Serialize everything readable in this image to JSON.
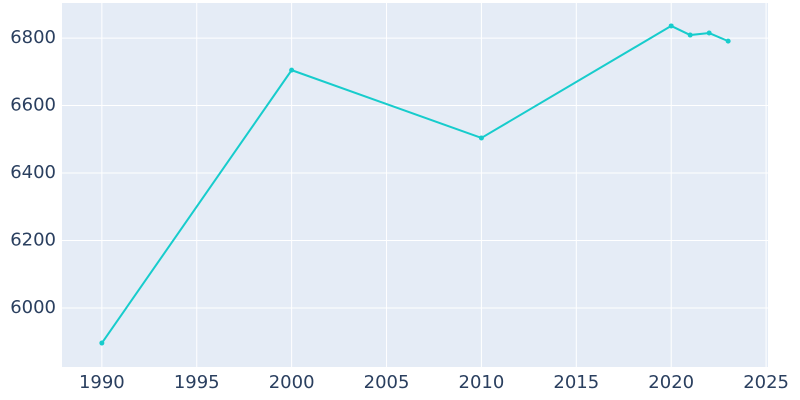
{
  "chart_data": {
    "type": "line",
    "x": [
      1990,
      2000,
      2010,
      2020,
      2021,
      2022,
      2023
    ],
    "series": [
      {
        "color": "#17cccc",
        "values": [
          5896,
          6705,
          6504,
          6836,
          6809,
          6815,
          6791
        ]
      }
    ],
    "xlim": [
      1987.9,
      2025.1
    ],
    "xticks": [
      1990,
      1995,
      2000,
      2005,
      2010,
      2015,
      2020,
      2025
    ],
    "ylim": [
      5825,
      6904
    ],
    "yticks": [
      6000,
      6200,
      6400,
      6600,
      6800
    ],
    "grid": true
  }
}
